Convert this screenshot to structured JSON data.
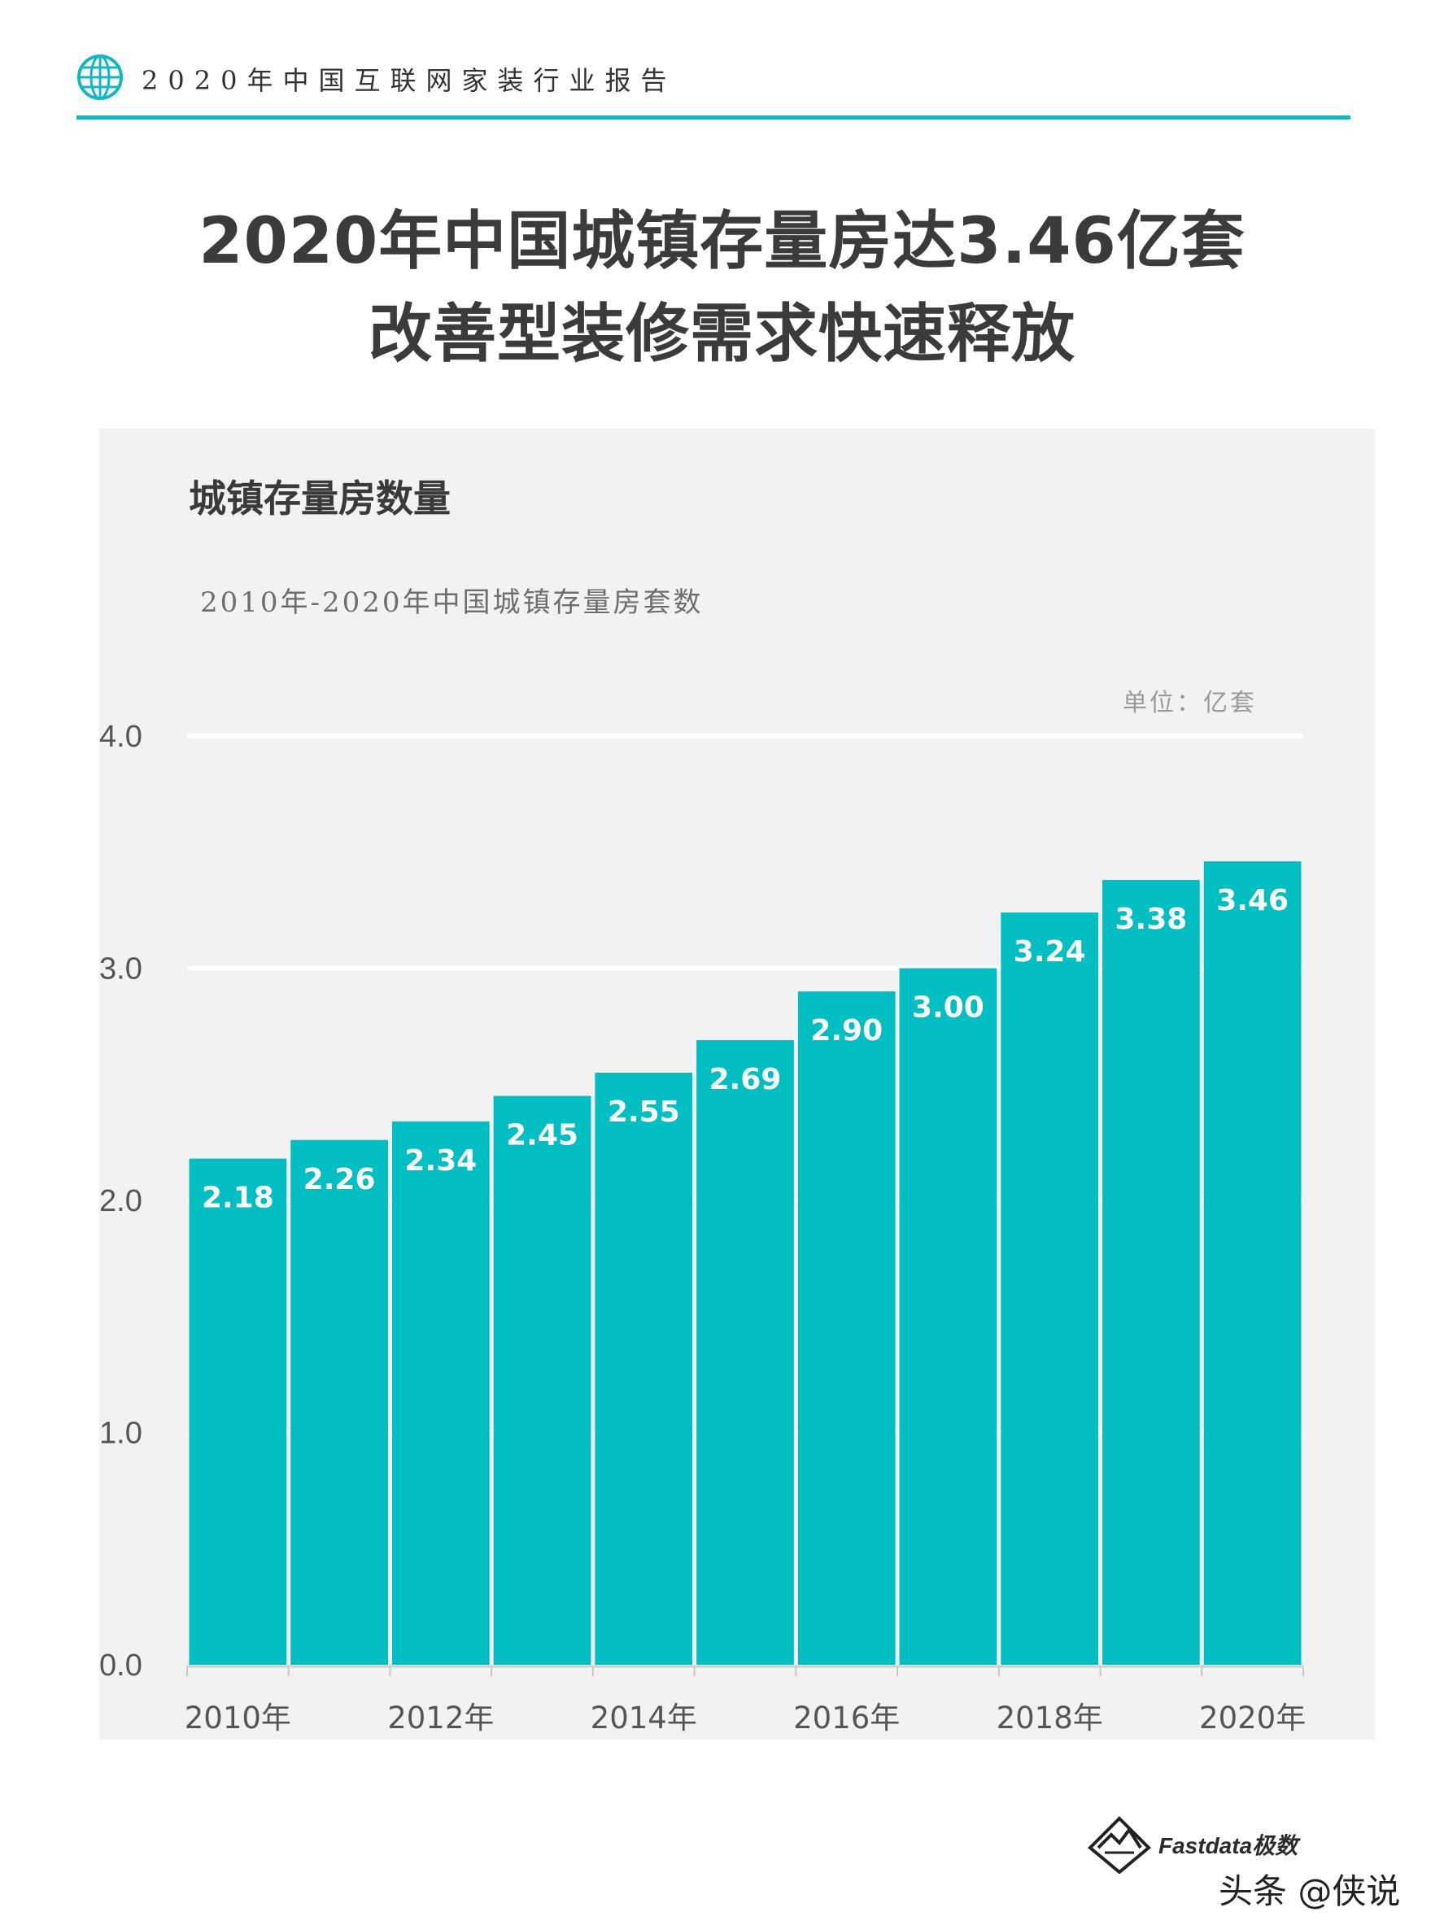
{
  "header": {
    "title": "2020年中国互联网家装行业报告",
    "icon": "globe-icon",
    "accent_color": "#11b8c1"
  },
  "title": {
    "line1": "2020年中国城镇存量房达3.46亿套",
    "line2": "改善型装修需求快速释放"
  },
  "chart_panel": {
    "title": "城镇存量房数量",
    "subtitle": "2010年-2020年中国城镇存量房套数",
    "unit": "单位：亿套"
  },
  "chart_data": {
    "type": "bar",
    "categories": [
      "2010年",
      "2011年",
      "2012年",
      "2013年",
      "2014年",
      "2015年",
      "2016年",
      "2017年",
      "2018年",
      "2019年",
      "2020年"
    ],
    "values": [
      2.18,
      2.26,
      2.34,
      2.45,
      2.55,
      2.69,
      2.9,
      3.0,
      3.24,
      3.38,
      3.46
    ],
    "value_labels": [
      "2.18",
      "2.26",
      "2.34",
      "2.45",
      "2.55",
      "2.69",
      "2.90",
      "3.00",
      "3.24",
      "3.38",
      "3.46"
    ],
    "x_tick_labels": [
      "2010年",
      "",
      "2012年",
      "",
      "2014年",
      "",
      "2016年",
      "",
      "2018年",
      "",
      "2020年"
    ],
    "y_ticks": [
      "0.0",
      "1.0",
      "2.0",
      "3.0",
      "4.0"
    ],
    "ylim": [
      0,
      4
    ],
    "grid": true,
    "bar_color": "#00bec2"
  },
  "footer": {
    "brand": "Fastdata极数",
    "credit": "头条 @侠说"
  }
}
